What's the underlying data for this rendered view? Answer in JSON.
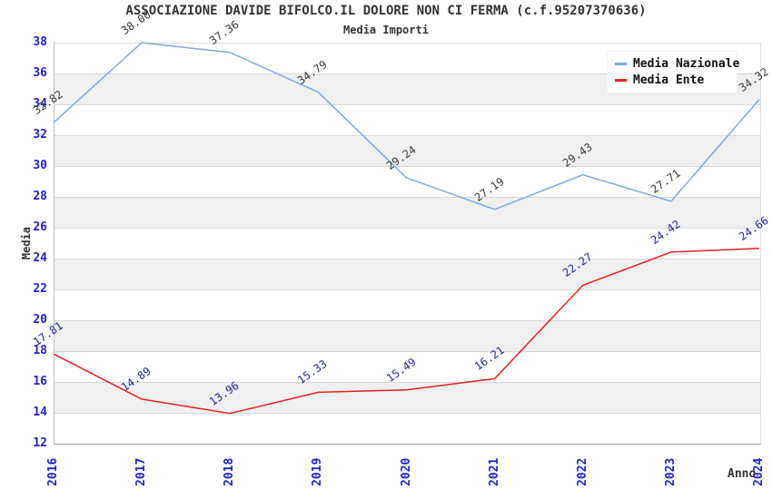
{
  "title": "ASSOCIAZIONE DAVIDE BIFOLCO.IL DOLORE NON CI FERMA (c.f.95207370636)",
  "subtitle": "Media Importi",
  "axis": {
    "y_title": "Media",
    "x_title": "Anno"
  },
  "legend": {
    "items": [
      {
        "label": "Media Nazionale",
        "color": "#7ea8e2"
      },
      {
        "label": "Media Ente",
        "color": "#e52222"
      }
    ]
  },
  "colors": {
    "tick_label": "#2121ce",
    "band": "#f0f0f0",
    "gridline": "#d8d8d8",
    "title_text": "#333333"
  },
  "chart_data": {
    "type": "line",
    "title": "ASSOCIAZIONE DAVIDE BIFOLCO.IL DOLORE NON CI FERMA (c.f.95207370636)",
    "subtitle": "Media Importi",
    "xlabel": "Anno",
    "ylabel": "Media",
    "x": [
      2016,
      2017,
      2018,
      2019,
      2020,
      2021,
      2022,
      2023,
      2024
    ],
    "series": [
      {
        "name": "Media Nazionale",
        "color": "#7ea8e2",
        "label_color": "#3a3a3a",
        "values": [
          32.82,
          38.0,
          37.36,
          34.79,
          29.24,
          27.19,
          29.43,
          27.71,
          34.32
        ]
      },
      {
        "name": "Media Ente",
        "color": "#e52222",
        "label_color": "#26269e",
        "values": [
          17.81,
          14.89,
          13.96,
          15.33,
          15.49,
          16.21,
          22.27,
          24.42,
          24.66
        ]
      }
    ],
    "ylim": [
      12,
      38
    ],
    "ytick_step": 2,
    "grid": true,
    "bands": "alternating-horizontal",
    "legend_position": "top-right"
  }
}
